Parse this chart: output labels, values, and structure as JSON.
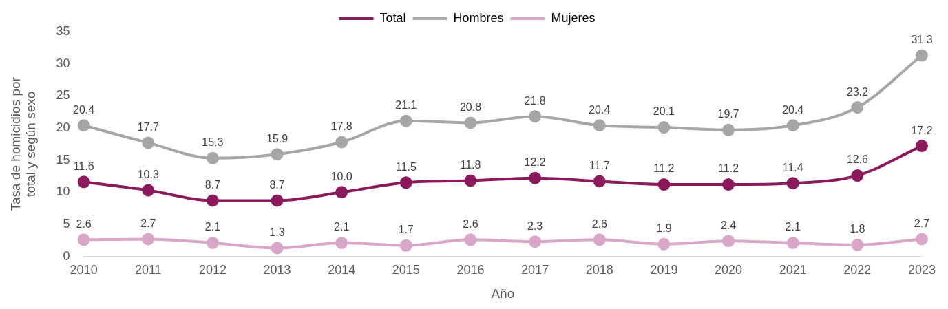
{
  "chart_data": {
    "type": "line",
    "xlabel": "Año",
    "ylabel": "Tasa de homicidios por total y según sexo",
    "categories": [
      "2010",
      "2011",
      "2012",
      "2013",
      "2014",
      "2015",
      "2016",
      "2017",
      "2018",
      "2019",
      "2020",
      "2021",
      "2022",
      "2023"
    ],
    "series": [
      {
        "name": "Total",
        "color": "#8b1a5c",
        "values": [
          11.6,
          10.3,
          8.7,
          8.7,
          10.0,
          11.5,
          11.8,
          12.2,
          11.7,
          11.2,
          11.2,
          11.4,
          12.6,
          17.2
        ],
        "value_labels": [
          "11.6",
          "10.3",
          "8.7",
          "8.7",
          "10.0",
          "11.5",
          "11.8",
          "12.2",
          "11.7",
          "11.2",
          "11.2",
          "11.4",
          "12.6",
          "17.2"
        ]
      },
      {
        "name": "Hombres",
        "color": "#a6a6a6",
        "values": [
          20.4,
          17.7,
          15.3,
          15.9,
          17.8,
          21.1,
          20.8,
          21.8,
          20.4,
          20.1,
          19.7,
          20.4,
          23.2,
          31.3
        ],
        "value_labels": [
          "20.4",
          "17.7",
          "15.3",
          "15.9",
          "17.8",
          "21.1",
          "20.8",
          "21.8",
          "20.4",
          "20.1",
          "19.7",
          "20.4",
          "23.2",
          "31.3"
        ]
      },
      {
        "name": "Mujeres",
        "color": "#d8a7c8",
        "values": [
          2.6,
          2.7,
          2.1,
          1.3,
          2.1,
          1.7,
          2.6,
          2.3,
          2.6,
          1.9,
          2.4,
          2.1,
          1.8,
          2.7
        ],
        "value_labels": [
          "2.6",
          "2.7",
          "2.1",
          "1.3",
          "2.1",
          "1.7",
          "2.6",
          "2.3",
          "2.6",
          "1.9",
          "2.4",
          "2.1",
          "1.8",
          "2.7"
        ]
      }
    ],
    "ylim": [
      0,
      35
    ],
    "yticks": [
      0,
      5,
      10,
      15,
      20,
      25,
      30,
      35
    ],
    "grid": false,
    "legend": "top",
    "marker": "circle",
    "line_style": "solid"
  }
}
